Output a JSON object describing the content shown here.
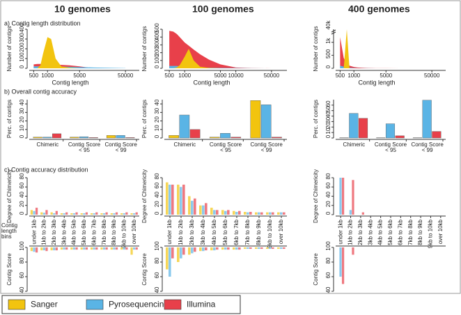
{
  "columns": [
    "10 genomes",
    "100 genomes",
    "400 genomes"
  ],
  "sections": [
    "a) Contig length distribution",
    "b) Overall contig accuracy",
    "c) Contig accuracy distribution"
  ],
  "chart_data": [
    {
      "type": "area",
      "xlabel": "Contig length",
      "ylabel": "Number of contigs",
      "xscale": "log",
      "x": [
        500,
        600,
        700,
        800,
        1000,
        1200,
        1500,
        2000,
        3000,
        5000,
        10000,
        20000,
        50000
      ],
      "xlim": [
        400,
        100000
      ],
      "xticks": [
        500,
        1000,
        5000,
        50000
      ],
      "ylim": [
        0,
        400
      ],
      "yticks": [
        0,
        100,
        200,
        300,
        400
      ],
      "series": [
        {
          "name": "Illumina",
          "color": "#e8404a",
          "values": [
            40,
            45,
            45,
            45,
            45,
            42,
            40,
            35,
            30,
            20,
            0,
            0,
            0
          ]
        },
        {
          "name": "Pyrosequencing",
          "color": "#5ab4e5",
          "values": [
            20,
            20,
            20,
            20,
            20,
            20,
            20,
            18,
            15,
            12,
            8,
            5,
            2
          ]
        },
        {
          "name": "Sanger",
          "color": "#f2c40f",
          "values": [
            0,
            0,
            30,
            150,
            320,
            300,
            100,
            20,
            5,
            0,
            0,
            0,
            0
          ]
        }
      ]
    },
    {
      "type": "area",
      "xlabel": "Contig length",
      "ylabel": "Number of contigs",
      "xscale": "log",
      "x": [
        500,
        600,
        700,
        800,
        1000,
        1200,
        1500,
        2000,
        3000,
        5000,
        10000,
        20000,
        50000
      ],
      "xlim": [
        400,
        100000
      ],
      "xticks": [
        500,
        1000,
        5000,
        10000,
        50000
      ],
      "ylim": [
        0,
        500
      ],
      "yticks": [
        0,
        100,
        200,
        300,
        400,
        500
      ],
      "series": [
        {
          "name": "Illumina",
          "color": "#e8404a",
          "values": [
            480,
            470,
            440,
            400,
            330,
            290,
            240,
            180,
            110,
            50,
            10,
            2,
            0
          ]
        },
        {
          "name": "Pyrosequencing",
          "color": "#5ab4e5",
          "values": [
            30,
            30,
            30,
            25,
            20,
            20,
            15,
            10,
            8,
            5,
            3,
            1,
            0
          ]
        },
        {
          "name": "Sanger",
          "color": "#f2c40f",
          "values": [
            0,
            0,
            10,
            40,
            150,
            250,
            100,
            20,
            5,
            0,
            0,
            0,
            0
          ]
        }
      ]
    },
    {
      "type": "area",
      "xlabel": "Contig length",
      "ylabel": "Number of contigs",
      "xscale": "log",
      "x": [
        500,
        600,
        700,
        800,
        1000,
        1200,
        1500,
        2000,
        3000,
        5000,
        10000,
        20000,
        50000
      ],
      "xlim": [
        400,
        100000
      ],
      "xticks": [
        500,
        1000,
        5000,
        50000
      ],
      "ylim": [
        0,
        1500
      ],
      "yticks": [
        0,
        500,
        {
          "value": 1000,
          "label": "1k"
        }
      ],
      "axis_break": {
        "value": 40000,
        "label": "40k"
      },
      "series": [
        {
          "name": "Illumina",
          "color": "#e8404a",
          "values": [
            1200,
            400,
            150,
            100,
            50,
            30,
            20,
            10,
            5,
            3,
            0,
            0,
            0
          ]
        },
        {
          "name": "Pyrosequencing",
          "color": "#5ab4e5",
          "values": [
            100,
            60,
            40,
            20,
            10,
            5,
            3,
            2,
            1,
            1,
            0,
            0,
            0
          ]
        },
        {
          "name": "Sanger",
          "color": "#f2c40f",
          "values": [
            0,
            0,
            40000,
            0,
            0,
            0,
            0,
            0,
            0,
            0,
            0,
            0,
            0
          ]
        }
      ]
    },
    {
      "type": "bar",
      "ylabel": "Perc. of contigs",
      "categories": [
        "Chimeric",
        "Contig Score < 95",
        "Contig Score < 99"
      ],
      "ylim": [
        0,
        45
      ],
      "yticks": [
        0,
        10,
        20,
        30,
        40
      ],
      "series": [
        {
          "name": "Sanger",
          "color": "#f2c40f",
          "values": [
            1,
            1,
            3
          ]
        },
        {
          "name": "Pyrosequencing",
          "color": "#5ab4e5",
          "values": [
            1,
            1.5,
            3
          ]
        },
        {
          "name": "Illumina",
          "color": "#e8404a",
          "values": [
            5,
            0.5,
            0.5
          ]
        }
      ]
    },
    {
      "type": "bar",
      "ylabel": "Perc. of contigs",
      "categories": [
        "Chimeric",
        "Contig Score < 95",
        "Contig Score < 99"
      ],
      "ylim": [
        0,
        45
      ],
      "yticks": [
        0,
        10,
        20,
        30,
        40
      ],
      "series": [
        {
          "name": "Sanger",
          "color": "#f2c40f",
          "values": [
            3,
            1,
            44
          ]
        },
        {
          "name": "Pyrosequencing",
          "color": "#5ab4e5",
          "values": [
            27,
            5.5,
            39
          ]
        },
        {
          "name": "Illumina",
          "color": "#e8404a",
          "values": [
            10,
            1,
            1
          ]
        }
      ]
    },
    {
      "type": "bar",
      "ylabel": "Perc. of contigs",
      "categories": [
        "Chimeric",
        "Contig Score < 95",
        "Contig Score < 99"
      ],
      "ylim": [
        0,
        70
      ],
      "yticks": [
        0,
        10,
        20,
        30,
        40,
        50,
        60
      ],
      "series": [
        {
          "name": "Sanger",
          "color": "#f2c40f",
          "values": [
            0.5,
            0.5,
            0.5
          ]
        },
        {
          "name": "Pyrosequencing",
          "color": "#5ab4e5",
          "values": [
            45,
            26,
            69
          ]
        },
        {
          "name": "Illumina",
          "color": "#e8404a",
          "values": [
            36,
            4,
            12
          ]
        }
      ]
    },
    {
      "type": "strip",
      "ylabel": "Degree of Chimericity",
      "xlabel": "Contig length bins",
      "categories": [
        "under 1kb",
        "1kb to 2kb",
        "2kb to 3kb",
        "3kb to 4kb",
        "4kb to 5kb",
        "5kb to 6kb",
        "6kb to 7kb",
        "7kb to 8kb",
        "8kb to 9kb",
        "9kb to 10kb",
        "over 10kb"
      ],
      "ylim": [
        0,
        80
      ],
      "yticks": [
        0,
        20,
        40,
        60,
        80
      ],
      "series": [
        {
          "name": "Sanger",
          "color": "#f2c40f",
          "values": [
            10,
            5,
            5,
            3,
            3,
            3,
            3,
            3,
            3,
            3,
            3
          ]
        },
        {
          "name": "Pyrosequencing",
          "color": "#5ab4e5",
          "values": [
            8,
            4,
            3,
            3,
            3,
            3,
            3,
            3,
            3,
            3,
            3
          ]
        },
        {
          "name": "Illumina",
          "color": "#e8404a",
          "values": [
            15,
            10,
            8,
            5,
            5,
            5,
            5,
            5,
            5,
            5,
            5
          ]
        }
      ]
    },
    {
      "type": "strip",
      "ylabel": "Degree of Chimericity",
      "categories": [
        "under 1kb",
        "1kb to 2kb",
        "2kb to 3kb",
        "3kb to 4kb",
        "4kb to 5kb",
        "5kb to 6kb",
        "6kb to 7kb",
        "7kb to 8kb",
        "8kb to 9kb",
        "9kb to 10kb",
        "over 10kb"
      ],
      "ylim": [
        0,
        80
      ],
      "yticks": [
        0,
        20,
        40,
        60,
        80
      ],
      "series": [
        {
          "name": "Sanger",
          "color": "#f2c40f",
          "values": [
            70,
            65,
            40,
            20,
            15,
            10,
            8,
            6,
            5,
            5,
            5
          ]
        },
        {
          "name": "Pyrosequencing",
          "color": "#5ab4e5",
          "values": [
            65,
            60,
            30,
            20,
            10,
            8,
            6,
            5,
            5,
            5,
            5
          ]
        },
        {
          "name": "Illumina",
          "color": "#e8404a",
          "values": [
            65,
            65,
            35,
            25,
            10,
            10,
            8,
            6,
            5,
            5,
            5
          ]
        }
      ]
    },
    {
      "type": "strip",
      "ylabel": "Degree of Chimericity",
      "categories": [
        "under 1kb",
        "1kb to 2kb",
        "2kb to 3kb",
        "3kb to 4kb",
        "4kb to 5kb",
        "5kb to 6kb",
        "6kb to 7kb",
        "7kb to 8kb",
        "8kb to 9kb",
        "9kb to 10kb",
        "over 10kb"
      ],
      "ylim": [
        0,
        80
      ],
      "yticks": [
        0,
        20,
        40,
        60,
        80
      ],
      "series": [
        {
          "name": "Sanger",
          "color": "#f2c40f",
          "values": [
            null,
            null,
            null,
            null,
            null,
            null,
            null,
            null,
            null,
            null,
            null
          ]
        },
        {
          "name": "Pyrosequencing",
          "color": "#5ab4e5",
          "values": [
            80,
            10,
            null,
            null,
            null,
            null,
            null,
            null,
            null,
            null,
            null
          ]
        },
        {
          "name": "Illumina",
          "color": "#e8404a",
          "values": [
            80,
            75,
            5,
            null,
            null,
            null,
            null,
            null,
            null,
            null,
            null
          ]
        }
      ]
    },
    {
      "type": "strip",
      "ylabel": "Contig Score",
      "direction": "down",
      "ylim": [
        40,
        100
      ],
      "yticks": [
        40,
        60,
        80,
        100
      ],
      "series": [
        {
          "name": "Sanger",
          "color": "#f2c40f",
          "values": [
            95,
            96,
            96,
            97,
            97,
            97,
            97,
            97,
            97,
            97,
            90
          ]
        },
        {
          "name": "Pyrosequencing",
          "color": "#5ab4e5",
          "values": [
            94,
            96,
            96,
            97,
            97,
            97,
            97,
            97,
            97,
            97,
            97
          ]
        },
        {
          "name": "Illumina",
          "color": "#e8404a",
          "values": [
            93,
            95,
            96,
            97,
            97,
            97,
            97,
            97,
            97,
            97,
            97
          ]
        }
      ]
    },
    {
      "type": "strip",
      "ylabel": "Contig Score",
      "direction": "down",
      "ylim": [
        40,
        100
      ],
      "yticks": [
        40,
        60,
        80,
        100
      ],
      "series": [
        {
          "name": "Sanger",
          "color": "#f2c40f",
          "values": [
            70,
            80,
            90,
            95,
            96,
            97,
            97,
            98,
            98,
            98,
            98
          ]
        },
        {
          "name": "Pyrosequencing",
          "color": "#5ab4e5",
          "values": [
            60,
            85,
            92,
            95,
            96,
            97,
            97,
            98,
            98,
            98,
            98
          ]
        },
        {
          "name": "Illumina",
          "color": "#e8404a",
          "values": [
            85,
            90,
            94,
            96,
            97,
            97,
            97,
            98,
            98,
            98,
            98
          ]
        }
      ]
    },
    {
      "type": "strip",
      "ylabel": "Contig Score",
      "direction": "down",
      "ylim": [
        40,
        100
      ],
      "yticks": [
        40,
        60,
        80,
        100
      ],
      "series": [
        {
          "name": "Sanger",
          "color": "#f2c40f",
          "values": [
            null,
            null,
            null,
            null,
            null,
            null,
            null,
            null,
            null,
            null,
            null
          ]
        },
        {
          "name": "Pyrosequencing",
          "color": "#5ab4e5",
          "values": [
            60,
            null,
            null,
            null,
            null,
            null,
            null,
            null,
            null,
            null,
            null
          ]
        },
        {
          "name": "Illumina",
          "color": "#e8404a",
          "values": [
            50,
            90,
            null,
            null,
            null,
            null,
            null,
            null,
            null,
            null,
            null
          ]
        }
      ]
    }
  ]
}
